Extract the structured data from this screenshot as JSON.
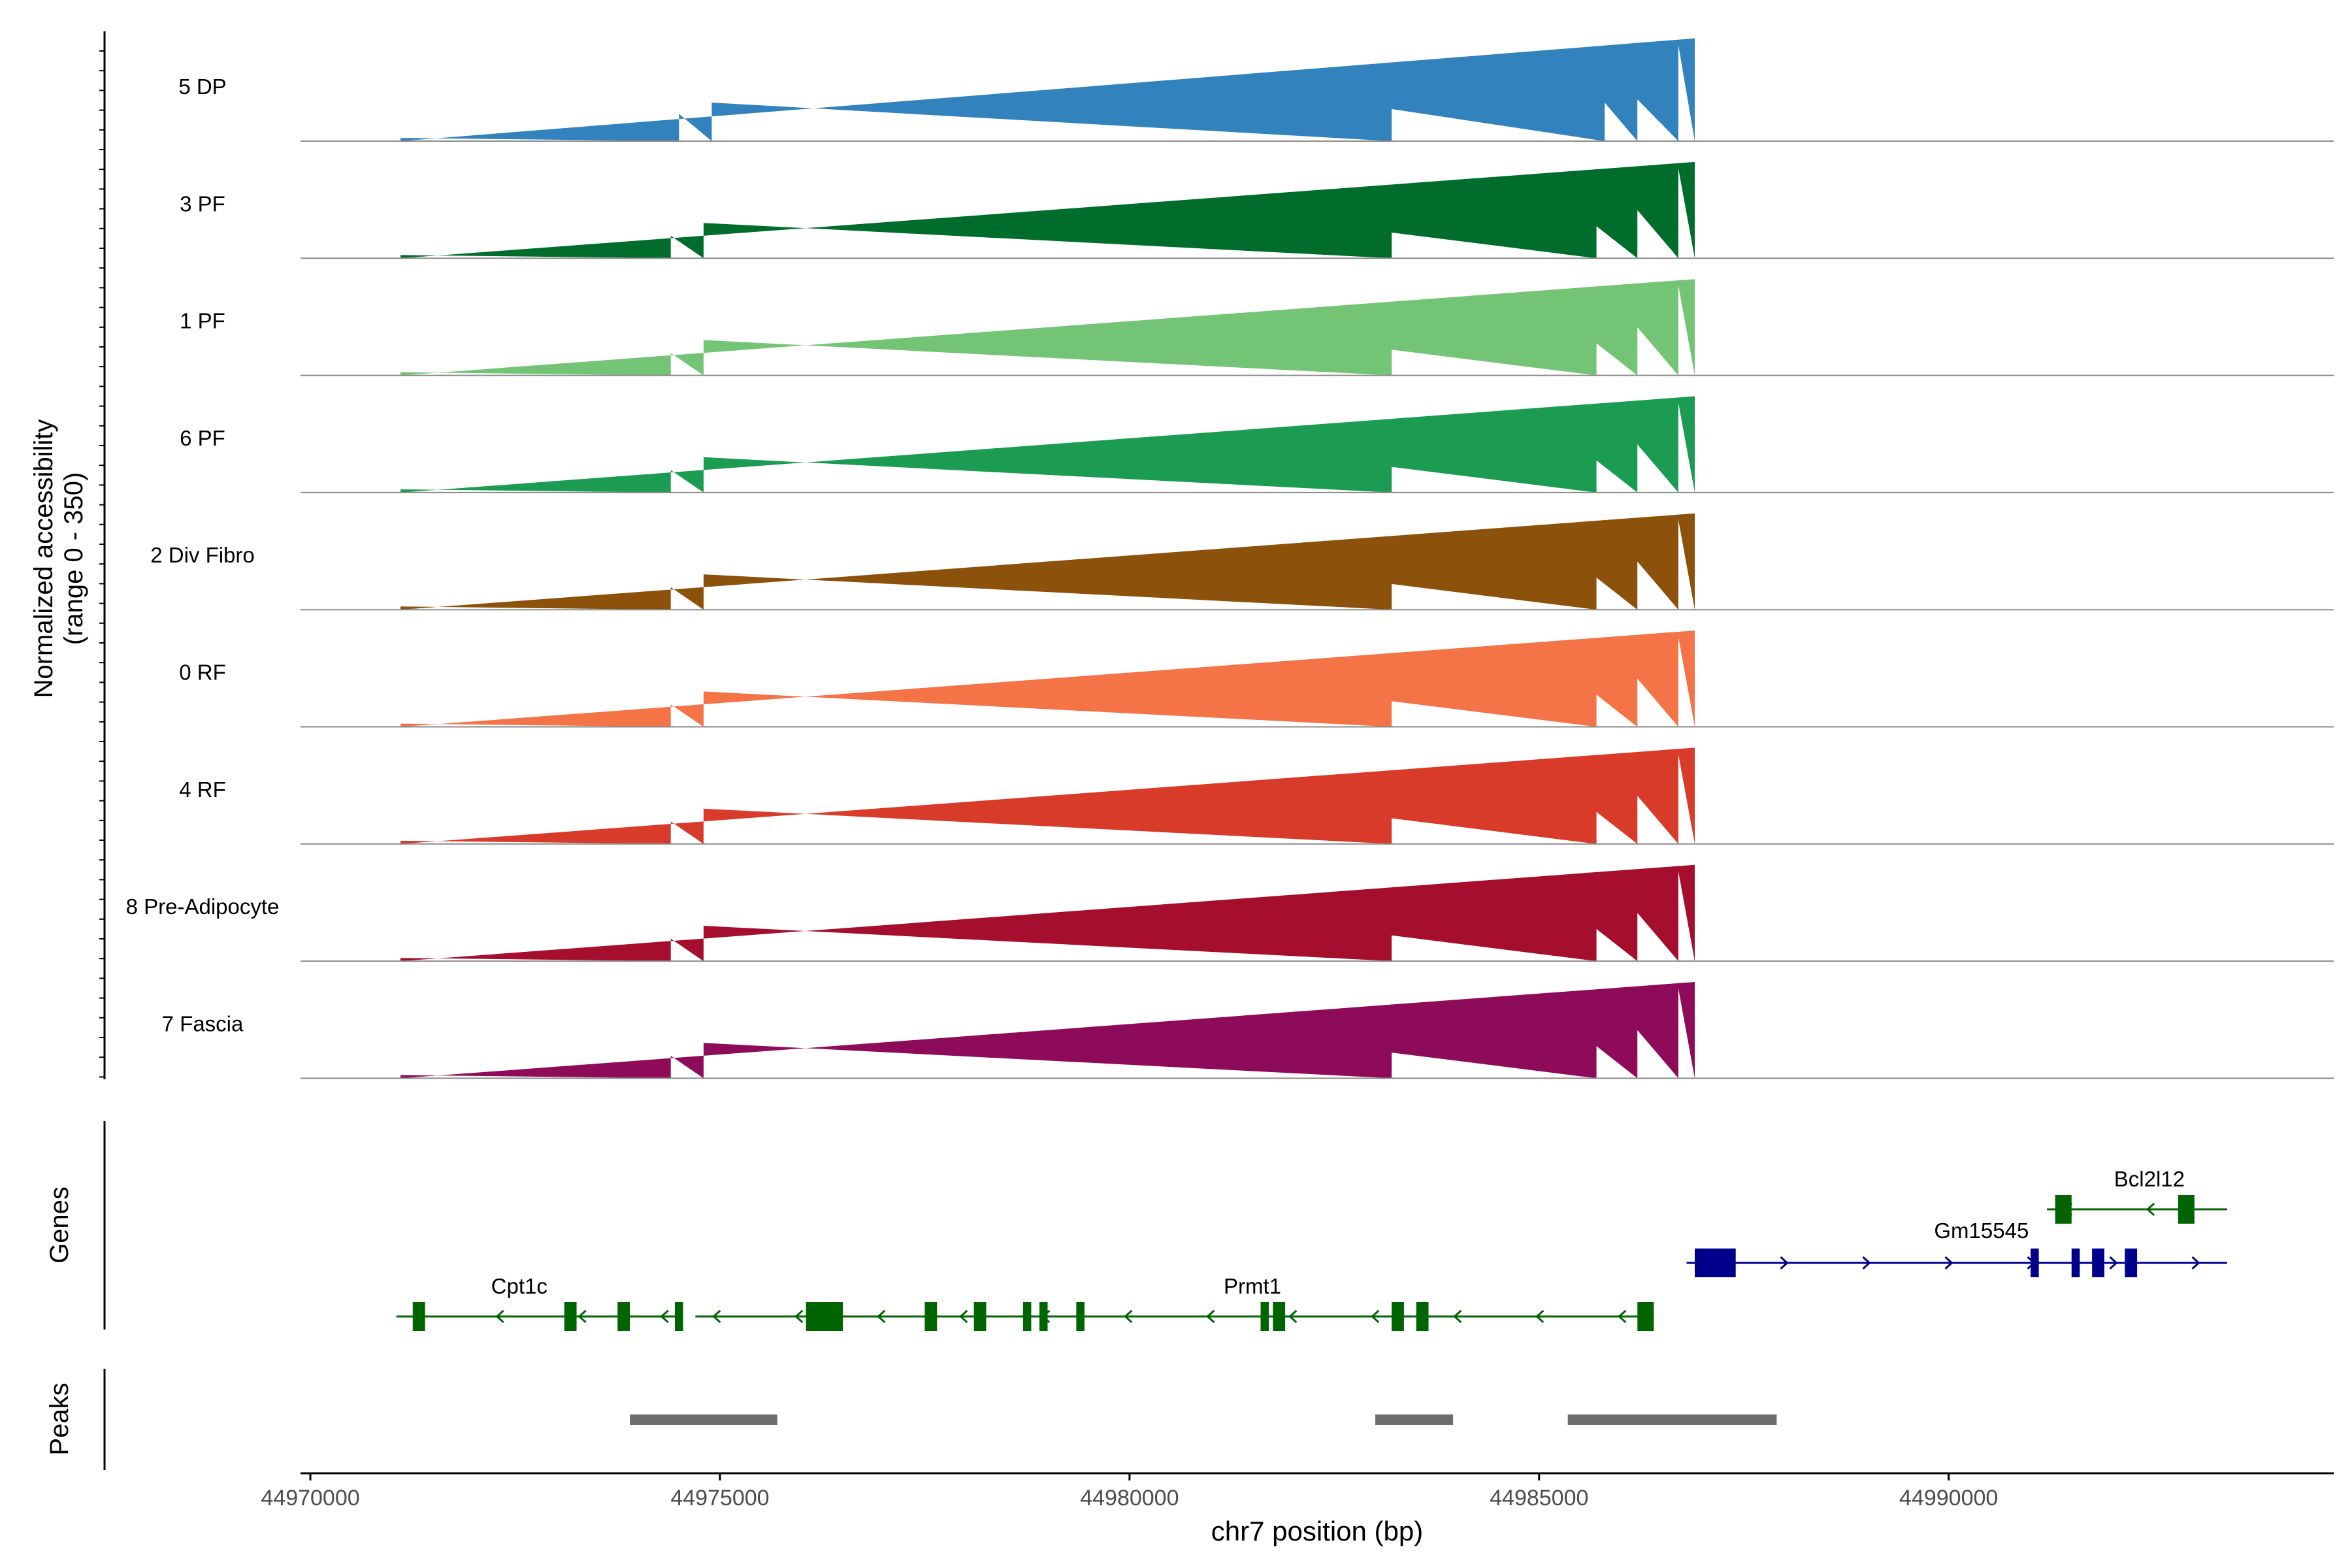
{
  "chart_data": {
    "type": "area",
    "title": "",
    "ylabel_line1": "Normalized accessibility",
    "ylabel_line2": "(range 0 - 350)",
    "xlabel": "chr7 position (bp)",
    "xlim": [
      44969880,
      44994700
    ],
    "ylim": [
      0,
      350
    ],
    "x_ticks": [
      44970000,
      44975000,
      44980000,
      44985000,
      44990000
    ],
    "x_tick_labels": [
      "44970000",
      "44975000",
      "44980000",
      "44985000",
      "44990000"
    ],
    "genes_label": "Genes",
    "peaks_label": "Peaks",
    "tracks": [
      {
        "name": "5 DP",
        "color": "#3182BD",
        "profile": [
          [
            44971100,
            10
          ],
          [
            44974500,
            85
          ],
          [
            44974900,
            120
          ],
          [
            44983200,
            100
          ],
          [
            44985800,
            120
          ],
          [
            44986200,
            130
          ],
          [
            44986700,
            300
          ],
          [
            44986900,
            320
          ]
        ]
      },
      {
        "name": "3 PF",
        "color": "#006D2C",
        "profile": [
          [
            44971100,
            10
          ],
          [
            44974400,
            70
          ],
          [
            44974800,
            110
          ],
          [
            44983200,
            80
          ],
          [
            44985700,
            100
          ],
          [
            44986200,
            150
          ],
          [
            44986700,
            280
          ],
          [
            44986900,
            300
          ]
        ]
      },
      {
        "name": "1 PF",
        "color": "#74C476",
        "profile": [
          [
            44971100,
            10
          ],
          [
            44974400,
            70
          ],
          [
            44974800,
            110
          ],
          [
            44983200,
            80
          ],
          [
            44985700,
            100
          ],
          [
            44986200,
            150
          ],
          [
            44986700,
            280
          ],
          [
            44986900,
            300
          ]
        ]
      },
      {
        "name": "6 PF",
        "color": "#1B9C52",
        "profile": [
          [
            44971100,
            10
          ],
          [
            44974400,
            70
          ],
          [
            44974800,
            110
          ],
          [
            44983200,
            80
          ],
          [
            44985700,
            100
          ],
          [
            44986200,
            150
          ],
          [
            44986700,
            280
          ],
          [
            44986900,
            300
          ]
        ]
      },
      {
        "name": "2 Div Fibro",
        "color": "#8C510A",
        "profile": [
          [
            44971100,
            10
          ],
          [
            44974400,
            70
          ],
          [
            44974800,
            110
          ],
          [
            44983200,
            80
          ],
          [
            44985700,
            100
          ],
          [
            44986200,
            150
          ],
          [
            44986700,
            280
          ],
          [
            44986900,
            300
          ]
        ]
      },
      {
        "name": "0 RF",
        "color": "#F47347",
        "profile": [
          [
            44971100,
            10
          ],
          [
            44974400,
            70
          ],
          [
            44974800,
            110
          ],
          [
            44983200,
            80
          ],
          [
            44985700,
            100
          ],
          [
            44986200,
            150
          ],
          [
            44986700,
            280
          ],
          [
            44986900,
            300
          ]
        ]
      },
      {
        "name": "4 RF",
        "color": "#D93B2B",
        "profile": [
          [
            44971100,
            10
          ],
          [
            44974400,
            70
          ],
          [
            44974800,
            110
          ],
          [
            44983200,
            80
          ],
          [
            44985700,
            100
          ],
          [
            44986200,
            150
          ],
          [
            44986700,
            280
          ],
          [
            44986900,
            300
          ]
        ]
      },
      {
        "name": "8 Pre-Adipocyte",
        "color": "#A50F2D",
        "profile": [
          [
            44971100,
            10
          ],
          [
            44974400,
            70
          ],
          [
            44974800,
            110
          ],
          [
            44983200,
            80
          ],
          [
            44985700,
            100
          ],
          [
            44986200,
            150
          ],
          [
            44986700,
            280
          ],
          [
            44986900,
            300
          ]
        ]
      },
      {
        "name": "7 Fascia",
        "color": "#8E0B5A",
        "profile": [
          [
            44971100,
            10
          ],
          [
            44974400,
            70
          ],
          [
            44974800,
            110
          ],
          [
            44983200,
            80
          ],
          [
            44985700,
            100
          ],
          [
            44986200,
            150
          ],
          [
            44986700,
            280
          ],
          [
            44986900,
            300
          ]
        ]
      }
    ],
    "genes": [
      {
        "name": "Cpt1c",
        "strand": "-",
        "start": 44971050,
        "end": 44974550,
        "exons": [
          [
            44971250,
            44971400
          ],
          [
            44973100,
            44973250
          ],
          [
            44973750,
            44973900
          ],
          [
            44974450,
            44974550
          ]
        ]
      },
      {
        "name": "Prmt1",
        "strand": "-",
        "start": 44974700,
        "end": 44986400,
        "exons": [
          [
            44976050,
            44976500
          ],
          [
            44977500,
            44977650
          ],
          [
            44978100,
            44978250
          ],
          [
            44978700,
            44978800
          ],
          [
            44978900,
            44979000
          ],
          [
            44979350,
            44979450
          ],
          [
            44981600,
            44981700
          ],
          [
            44981750,
            44981900
          ],
          [
            44983200,
            44983350
          ],
          [
            44983500,
            44983650
          ],
          [
            44986200,
            44986400
          ]
        ]
      },
      {
        "name": "Gm15545",
        "strand": "+",
        "start": 44986800,
        "end": 44993400,
        "exons": [
          [
            44986900,
            44987400
          ],
          [
            44991000,
            44991100
          ],
          [
            44991500,
            44991600
          ],
          [
            44991750,
            44991900
          ],
          [
            44992150,
            44992300
          ]
        ]
      },
      {
        "name": "Bcl2l12",
        "strand": "-",
        "start": 44991200,
        "end": 44993400,
        "exons": [
          [
            44991300,
            44991500
          ],
          [
            44992800,
            44993000
          ]
        ]
      }
    ],
    "peaks": [
      [
        44973900,
        44975700
      ],
      [
        44983000,
        44983950
      ],
      [
        44985350,
        44987900
      ]
    ]
  }
}
